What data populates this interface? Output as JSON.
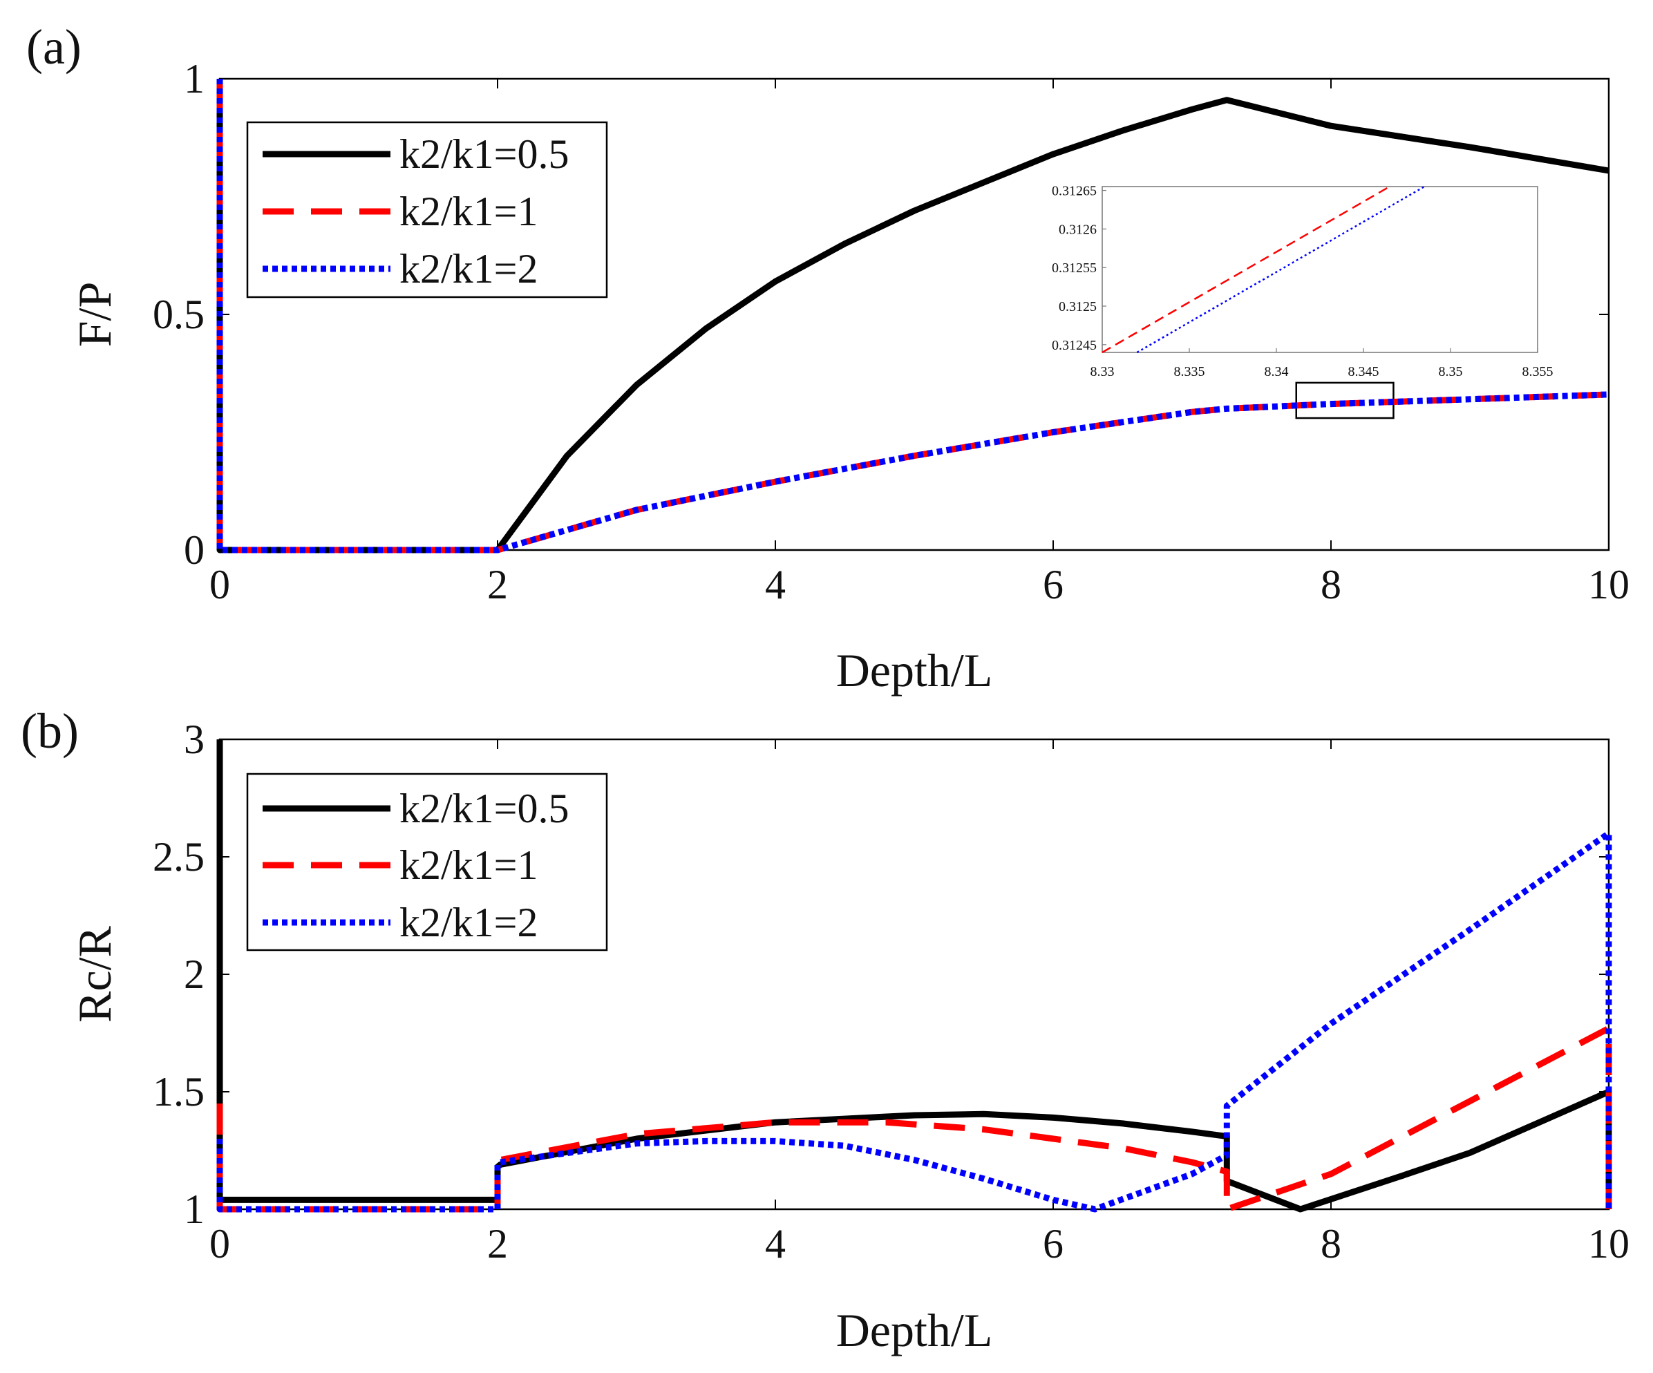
{
  "chart_data": [
    {
      "id": "a",
      "type": "line",
      "panel_label": "(a)",
      "xlabel": "Depth/L",
      "ylabel": "F/P",
      "xlim": [
        0,
        10
      ],
      "ylim": [
        0,
        1
      ],
      "xticks": [
        0,
        2,
        4,
        6,
        8,
        10
      ],
      "yticks": [
        0,
        0.5,
        1
      ],
      "xtick_labels": [
        "0",
        "2",
        "4",
        "6",
        "8",
        "10"
      ],
      "ytick_labels": [
        "0",
        "0.5",
        "1"
      ],
      "legend_position": "top-left",
      "series": [
        {
          "name": "k2/k1=0.5",
          "color": "#000000",
          "style": "solid",
          "x": [
            0,
            0,
            2,
            2.5,
            3,
            3.5,
            4,
            4.5,
            5,
            5.5,
            6,
            6.5,
            7,
            7.25,
            8,
            9,
            10
          ],
          "y": [
            1,
            0,
            0,
            0.2,
            0.35,
            0.47,
            0.57,
            0.65,
            0.72,
            0.78,
            0.84,
            0.89,
            0.935,
            0.955,
            0.9,
            0.855,
            0.805
          ]
        },
        {
          "name": "k2/k1=1",
          "color": "#ff0000",
          "style": "dashed",
          "x": [
            0,
            0,
            2,
            3,
            4,
            5,
            6,
            7,
            7.25,
            8,
            9,
            10
          ],
          "y": [
            1,
            0,
            0,
            0.085,
            0.145,
            0.2,
            0.25,
            0.293,
            0.3,
            0.31,
            0.32,
            0.33
          ]
        },
        {
          "name": "k2/k1=2",
          "color": "#0000ff",
          "style": "dotted",
          "x": [
            0,
            0,
            2,
            3,
            4,
            5,
            6,
            7,
            7.25,
            8,
            9,
            10
          ],
          "y": [
            1,
            0,
            0,
            0.085,
            0.145,
            0.2,
            0.25,
            0.293,
            0.3,
            0.31,
            0.32,
            0.33
          ]
        }
      ],
      "zoom_box": {
        "x": [
          7.75,
          8.45
        ],
        "y": [
          0.28,
          0.355
        ]
      },
      "inset": {
        "xlim": [
          8.33,
          8.355
        ],
        "ylim": [
          0.31244,
          0.312655
        ],
        "xticks": [
          8.33,
          8.335,
          8.34,
          8.345,
          8.35,
          8.355
        ],
        "xtick_labels": [
          "8.33",
          "8.335",
          "8.34",
          "8.345",
          "8.35",
          "8.355"
        ],
        "yticks": [
          0.31245,
          0.3125,
          0.31255,
          0.3126,
          0.31265
        ],
        "ytick_labels": [
          "0.31245",
          "0.3125",
          "0.31255",
          "0.3126",
          "0.31265"
        ],
        "series": [
          {
            "name": "k2/k1=1",
            "color": "#ff0000",
            "style": "dashed",
            "x": [
              8.33,
              8.3465
            ],
            "y": [
              0.31244,
              0.312655
            ]
          },
          {
            "name": "k2/k1=2",
            "color": "#0000ff",
            "style": "dotted",
            "x": [
              8.332,
              8.3485
            ],
            "y": [
              0.31244,
              0.312655
            ]
          }
        ]
      }
    },
    {
      "id": "b",
      "type": "line",
      "panel_label": "(b)",
      "xlabel": "Depth/L",
      "ylabel": "Rc/R",
      "xlim": [
        0,
        10
      ],
      "ylim": [
        1,
        3
      ],
      "xticks": [
        0,
        2,
        4,
        6,
        8,
        10
      ],
      "yticks": [
        1,
        1.5,
        2,
        2.5,
        3
      ],
      "xtick_labels": [
        "0",
        "2",
        "4",
        "6",
        "8",
        "10"
      ],
      "ytick_labels": [
        "1",
        "1.5",
        "2",
        "2.5",
        "3"
      ],
      "legend_position": "top-left",
      "series": [
        {
          "name": "k2/k1=0.5",
          "color": "#000000",
          "style": "solid",
          "x": [
            0,
            0,
            0.03,
            2,
            2,
            2.02,
            3,
            4,
            5,
            5.5,
            6,
            6.5,
            7,
            7.25,
            7.25,
            7.78,
            8.5,
            9,
            9.5,
            10,
            10
          ],
          "y": [
            3,
            1.04,
            1.04,
            1.04,
            1.18,
            1.19,
            1.3,
            1.37,
            1.4,
            1.405,
            1.39,
            1.365,
            1.33,
            1.31,
            1.12,
            1.0,
            1.14,
            1.24,
            1.37,
            1.5,
            1.0
          ]
        },
        {
          "name": "k2/k1=1",
          "color": "#ff0000",
          "style": "dashed",
          "x": [
            0,
            0,
            0.03,
            2,
            2,
            2.02,
            3,
            4,
            4.8,
            5.5,
            6,
            6.5,
            7,
            7.25,
            7.25,
            8,
            9,
            10,
            10
          ],
          "y": [
            1.45,
            1.0,
            1.0,
            1.0,
            1.2,
            1.21,
            1.32,
            1.37,
            1.37,
            1.34,
            1.3,
            1.26,
            1.2,
            1.16,
            1.0,
            1.15,
            1.46,
            1.77,
            1.0
          ]
        },
        {
          "name": "k2/k1=2",
          "color": "#0000ff",
          "style": "dotted",
          "x": [
            0,
            0,
            0.03,
            2,
            2,
            2.02,
            3,
            3.5,
            4,
            4.5,
            5,
            5.5,
            6,
            6.3,
            7,
            7.25,
            7.25,
            8,
            9,
            10,
            10
          ],
          "y": [
            1.3,
            1.0,
            1.0,
            1.0,
            1.19,
            1.2,
            1.28,
            1.29,
            1.29,
            1.27,
            1.21,
            1.13,
            1.04,
            1.0,
            1.15,
            1.23,
            1.44,
            1.79,
            2.19,
            2.6,
            1.0
          ]
        }
      ]
    }
  ]
}
